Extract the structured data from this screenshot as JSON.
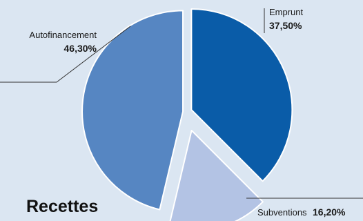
{
  "chart_data": {
    "type": "pie",
    "title": "Recettes",
    "slices": [
      {
        "label": "Emprunt",
        "value_label": "37,50%",
        "value": 37.5,
        "color": "#0a5ca8"
      },
      {
        "label": "Subventions",
        "value_label": "16,20%",
        "value": 16.2,
        "color": "#b3c3e4"
      },
      {
        "label": "Autofinancement",
        "value_label": "46,30%",
        "value": 46.3,
        "color": "#5686c2"
      }
    ]
  }
}
